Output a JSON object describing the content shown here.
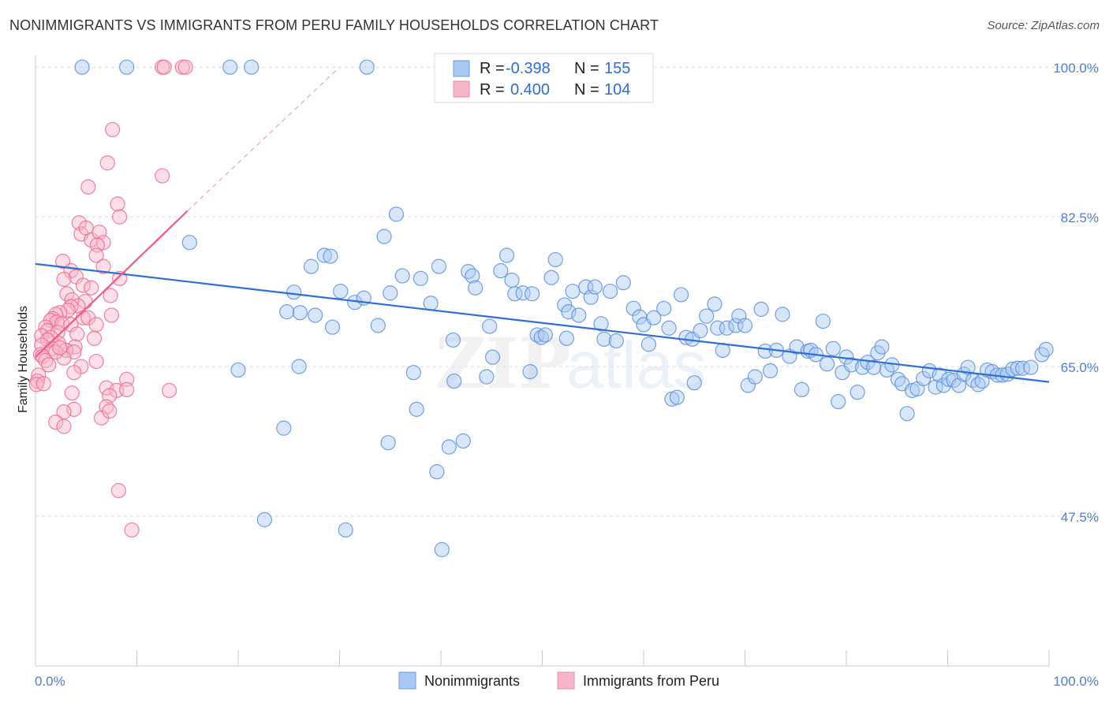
{
  "title": "NONIMMIGRANTS VS IMMIGRANTS FROM PERU FAMILY HOUSEHOLDS CORRELATION CHART",
  "source": "Source: ZipAtlas.com",
  "watermark": {
    "zip": "ZIP",
    "atlas": "atlas"
  },
  "legend_box": {
    "rows": [
      {
        "r_label": "R =",
        "r_value": "-0.398",
        "n_label": "N =",
        "n_value": "155",
        "color": "#a9c8f3"
      },
      {
        "r_label": "R =",
        "r_value": "0.400",
        "n_label": "N =",
        "n_value": "104",
        "color": "#f7b6c8"
      }
    ]
  },
  "bottom_legend": [
    {
      "label": "Nonimmigrants",
      "color": "#a9c8f3"
    },
    {
      "label": "Immigrants from Peru",
      "color": "#f7b6c8"
    }
  ],
  "chart_data": {
    "type": "scatter",
    "ylabel": "Family Households",
    "x_tick_labels": [
      "0.0%",
      "100.0%"
    ],
    "y_tick_labels": [
      "100.0%",
      "82.5%",
      "65.0%",
      "47.5%"
    ],
    "y_ticks": [
      100.0,
      82.5,
      65.0,
      47.5
    ],
    "xlim": [
      0,
      100
    ],
    "ylim": [
      30.0,
      101.4
    ],
    "colors": {
      "blue": "#5b8fdc",
      "blue_fill": "#a9c8f3",
      "pink": "#ee6a93",
      "pink_fill": "#f7b6c8"
    },
    "series": [
      {
        "name": "Nonimmigrants",
        "color": "blue",
        "trend": {
          "x": [
            0,
            100
          ],
          "y": [
            77.0,
            63.2
          ]
        },
        "points": [
          [
            4.6,
            100
          ],
          [
            9.0,
            100
          ],
          [
            19.2,
            100
          ],
          [
            21.3,
            100
          ],
          [
            32.7,
            100
          ],
          [
            15.2,
            79.5
          ],
          [
            20.0,
            64.6
          ],
          [
            24.5,
            57.8
          ],
          [
            22.6,
            47.1
          ],
          [
            25.5,
            73.7
          ],
          [
            24.8,
            71.4
          ],
          [
            26.0,
            65.0
          ],
          [
            26.1,
            71.3
          ],
          [
            27.2,
            76.7
          ],
          [
            27.6,
            71.0
          ],
          [
            28.5,
            78.0
          ],
          [
            29.1,
            77.9
          ],
          [
            29.3,
            69.6
          ],
          [
            30.1,
            73.8
          ],
          [
            30.6,
            45.9
          ],
          [
            31.5,
            72.5
          ],
          [
            32.4,
            73.0
          ],
          [
            33.8,
            69.8
          ],
          [
            34.4,
            80.2
          ],
          [
            35.0,
            73.6
          ],
          [
            35.6,
            82.8
          ],
          [
            36.2,
            75.6
          ],
          [
            37.3,
            64.3
          ],
          [
            37.6,
            60.0
          ],
          [
            38.0,
            75.3
          ],
          [
            39.0,
            72.4
          ],
          [
            39.6,
            52.7
          ],
          [
            39.8,
            76.7
          ],
          [
            40.1,
            43.6
          ],
          [
            40.8,
            55.6
          ],
          [
            41.2,
            68.1
          ],
          [
            41.3,
            63.3
          ],
          [
            42.2,
            56.3
          ],
          [
            42.7,
            76.1
          ],
          [
            43.1,
            75.6
          ],
          [
            43.4,
            74.2
          ],
          [
            44.5,
            63.8
          ],
          [
            44.8,
            69.7
          ],
          [
            45.1,
            66.1
          ],
          [
            45.9,
            76.2
          ],
          [
            46.5,
            78.0
          ],
          [
            47.0,
            75.1
          ],
          [
            47.3,
            73.5
          ],
          [
            48.1,
            73.6
          ],
          [
            48.8,
            64.4
          ],
          [
            49.0,
            73.5
          ],
          [
            49.5,
            68.7
          ],
          [
            49.9,
            68.4
          ],
          [
            50.3,
            68.7
          ],
          [
            50.9,
            75.4
          ],
          [
            51.3,
            77.5
          ],
          [
            52.2,
            72.2
          ],
          [
            52.4,
            68.3
          ],
          [
            52.6,
            71.4
          ],
          [
            53.0,
            73.8
          ],
          [
            53.6,
            71.0
          ],
          [
            54.3,
            74.3
          ],
          [
            54.8,
            73.1
          ],
          [
            55.2,
            74.3
          ],
          [
            55.8,
            70.0
          ],
          [
            56.1,
            68.2
          ],
          [
            56.7,
            73.8
          ],
          [
            57.3,
            68.0
          ],
          [
            58.0,
            74.8
          ],
          [
            59.0,
            71.8
          ],
          [
            59.6,
            70.8
          ],
          [
            60.0,
            69.9
          ],
          [
            60.5,
            67.6
          ],
          [
            61.0,
            70.7
          ],
          [
            62.0,
            71.8
          ],
          [
            62.5,
            69.5
          ],
          [
            62.8,
            61.2
          ],
          [
            63.3,
            61.4
          ],
          [
            63.7,
            73.4
          ],
          [
            64.2,
            68.4
          ],
          [
            64.8,
            68.2
          ],
          [
            65.0,
            63.1
          ],
          [
            65.6,
            69.2
          ],
          [
            66.2,
            70.9
          ],
          [
            67.0,
            72.3
          ],
          [
            67.3,
            69.5
          ],
          [
            67.8,
            66.9
          ],
          [
            68.2,
            69.5
          ],
          [
            69.1,
            69.8
          ],
          [
            69.4,
            70.9
          ],
          [
            70.0,
            69.8
          ],
          [
            70.3,
            62.8
          ],
          [
            71.0,
            63.8
          ],
          [
            71.6,
            71.7
          ],
          [
            72.0,
            66.8
          ],
          [
            72.5,
            64.5
          ],
          [
            73.1,
            66.9
          ],
          [
            73.7,
            71.1
          ],
          [
            74.4,
            66.2
          ],
          [
            75.1,
            67.3
          ],
          [
            75.6,
            62.3
          ],
          [
            76.2,
            66.8
          ],
          [
            76.5,
            66.9
          ],
          [
            77.0,
            66.4
          ],
          [
            77.7,
            70.3
          ],
          [
            78.1,
            65.3
          ],
          [
            78.7,
            67.1
          ],
          [
            79.2,
            60.9
          ],
          [
            79.6,
            64.3
          ],
          [
            80.0,
            66.1
          ],
          [
            80.5,
            65.2
          ],
          [
            81.1,
            62.0
          ],
          [
            81.6,
            64.9
          ],
          [
            82.1,
            65.5
          ],
          [
            82.7,
            64.9
          ],
          [
            83.1,
            66.6
          ],
          [
            83.5,
            67.3
          ],
          [
            84.0,
            64.6
          ],
          [
            84.5,
            65.2
          ],
          [
            85.1,
            63.5
          ],
          [
            85.5,
            63.0
          ],
          [
            86.0,
            59.5
          ],
          [
            86.5,
            62.2
          ],
          [
            87.0,
            62.4
          ],
          [
            87.6,
            63.6
          ],
          [
            88.2,
            64.5
          ],
          [
            88.8,
            62.6
          ],
          [
            89.2,
            64.0
          ],
          [
            89.6,
            62.8
          ],
          [
            90.1,
            63.5
          ],
          [
            90.6,
            63.4
          ],
          [
            91.1,
            62.8
          ],
          [
            91.6,
            64.1
          ],
          [
            92.0,
            64.9
          ],
          [
            92.5,
            63.4
          ],
          [
            93.0,
            62.9
          ],
          [
            93.4,
            63.3
          ],
          [
            93.9,
            64.6
          ],
          [
            94.4,
            64.4
          ],
          [
            94.9,
            64.0
          ],
          [
            95.4,
            64.0
          ],
          [
            95.9,
            64.1
          ],
          [
            96.4,
            64.7
          ],
          [
            96.9,
            64.8
          ],
          [
            97.4,
            64.8
          ],
          [
            98.2,
            64.9
          ],
          [
            99.3,
            66.4
          ],
          [
            99.7,
            67.0
          ],
          [
            34.8,
            56.1
          ]
        ]
      },
      {
        "name": "Immigrants from Peru",
        "color": "pink",
        "trend": {
          "x": [
            0,
            15
          ],
          "y": [
            66.1,
            83.2
          ],
          "dashed_x": [
            15,
            30
          ],
          "dashed_y": [
            83.2,
            100.0
          ]
        },
        "points": [
          [
            12.5,
            100
          ],
          [
            12.7,
            100
          ],
          [
            14.5,
            100
          ],
          [
            14.8,
            100
          ],
          [
            7.6,
            92.7
          ],
          [
            7.1,
            88.8
          ],
          [
            12.5,
            87.3
          ],
          [
            5.2,
            86.0
          ],
          [
            8.1,
            84.0
          ],
          [
            8.3,
            82.5
          ],
          [
            4.3,
            81.8
          ],
          [
            4.5,
            80.5
          ],
          [
            5.0,
            81.2
          ],
          [
            5.5,
            79.8
          ],
          [
            6.3,
            80.7
          ],
          [
            6.7,
            79.5
          ],
          [
            6.1,
            79.2
          ],
          [
            6.0,
            78.0
          ],
          [
            2.7,
            77.3
          ],
          [
            6.7,
            76.7
          ],
          [
            3.5,
            76.2
          ],
          [
            4.0,
            75.5
          ],
          [
            2.8,
            75.2
          ],
          [
            8.3,
            75.3
          ],
          [
            4.7,
            74.5
          ],
          [
            5.5,
            74.2
          ],
          [
            3.1,
            73.5
          ],
          [
            3.6,
            72.8
          ],
          [
            7.4,
            73.3
          ],
          [
            4.9,
            72.6
          ],
          [
            4.2,
            72.1
          ],
          [
            3.5,
            72.0
          ],
          [
            3.2,
            71.6
          ],
          [
            2.4,
            71.3
          ],
          [
            2.0,
            71.1
          ],
          [
            7.5,
            71.0
          ],
          [
            4.7,
            70.7
          ],
          [
            5.2,
            70.7
          ],
          [
            1.7,
            70.6
          ],
          [
            1.5,
            70.4
          ],
          [
            2.1,
            70.2
          ],
          [
            2.6,
            70.0
          ],
          [
            3.5,
            69.9
          ],
          [
            6.0,
            69.9
          ],
          [
            1.0,
            69.6
          ],
          [
            1.2,
            69.2
          ],
          [
            2.2,
            69.0
          ],
          [
            4.1,
            68.8
          ],
          [
            0.6,
            68.6
          ],
          [
            1.5,
            68.4
          ],
          [
            5.8,
            68.3
          ],
          [
            1.2,
            68.1
          ],
          [
            2.3,
            67.7
          ],
          [
            0.6,
            67.5
          ],
          [
            3.9,
            67.3
          ],
          [
            1.6,
            67.1
          ],
          [
            3.0,
            66.9
          ],
          [
            3.8,
            66.7
          ],
          [
            0.5,
            66.4
          ],
          [
            0.7,
            66.2
          ],
          [
            2.8,
            66.0
          ],
          [
            1.0,
            65.7
          ],
          [
            6.0,
            65.6
          ],
          [
            4.5,
            65.0
          ],
          [
            3.8,
            64.3
          ],
          [
            0.3,
            64.0
          ],
          [
            9.0,
            63.5
          ],
          [
            0.2,
            63.3
          ],
          [
            0.1,
            62.9
          ],
          [
            7.0,
            62.5
          ],
          [
            8.0,
            62.2
          ],
          [
            9.0,
            62.3
          ],
          [
            13.2,
            62.2
          ],
          [
            3.6,
            61.9
          ],
          [
            7.3,
            61.6
          ],
          [
            7.0,
            60.3
          ],
          [
            3.8,
            60.0
          ],
          [
            2.8,
            59.7
          ],
          [
            6.5,
            59.0
          ],
          [
            2.0,
            58.5
          ],
          [
            2.8,
            58.0
          ],
          [
            7.3,
            59.8
          ],
          [
            8.2,
            50.5
          ],
          [
            9.5,
            45.9
          ],
          [
            0.8,
            63.0
          ],
          [
            1.3,
            65.2
          ],
          [
            2.0,
            66.7
          ],
          [
            2.4,
            67.2
          ]
        ]
      }
    ]
  }
}
